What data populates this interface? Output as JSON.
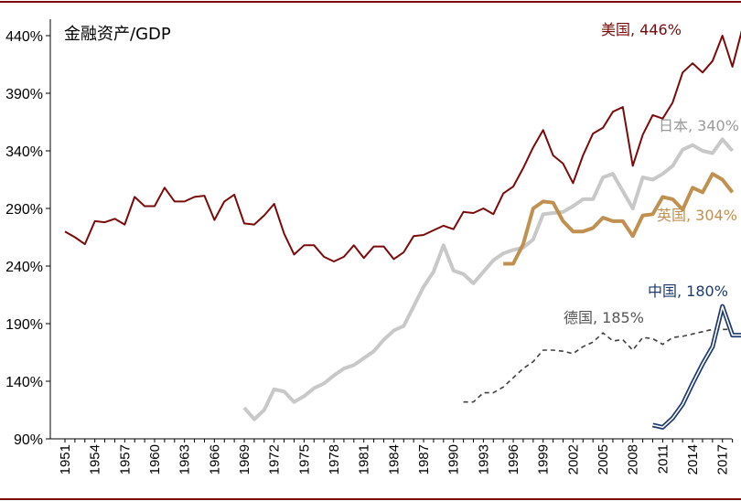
{
  "chart_data": {
    "type": "line",
    "title": "金融资产/GDP",
    "ylabel": "",
    "xlabel": "",
    "ylim": [
      90,
      460
    ],
    "xlim": [
      1951,
      2019
    ],
    "y_ticks": [
      90,
      140,
      190,
      240,
      290,
      340,
      390,
      440
    ],
    "y_tick_labels": [
      "90%",
      "140%",
      "190%",
      "240%",
      "290%",
      "340%",
      "390%",
      "440%"
    ],
    "x_ticks": [
      1951,
      1954,
      1957,
      1960,
      1963,
      1966,
      1969,
      1972,
      1975,
      1978,
      1981,
      1984,
      1987,
      1990,
      1993,
      1996,
      1999,
      2002,
      2005,
      2008,
      2011,
      2014,
      2017
    ],
    "x_tick_labels": [
      "1951",
      "1954",
      "1957",
      "1960",
      "1963",
      "1966",
      "1969",
      "1972",
      "1975",
      "1978",
      "1981",
      "1984",
      "1987",
      "1990",
      "1993",
      "1996",
      "1999",
      "2002",
      "2005",
      "2008",
      "2011",
      "2014",
      "2017"
    ],
    "grid": false,
    "series": [
      {
        "name": "美国",
        "label": "美国, 446%",
        "color": "#7b0a0a",
        "style": "solid",
        "x": [
          1951,
          1952,
          1953,
          1954,
          1955,
          1956,
          1957,
          1958,
          1959,
          1960,
          1961,
          1962,
          1963,
          1964,
          1965,
          1966,
          1967,
          1968,
          1969,
          1970,
          1971,
          1972,
          1973,
          1974,
          1975,
          1976,
          1977,
          1978,
          1979,
          1980,
          1981,
          1982,
          1983,
          1984,
          1985,
          1986,
          1987,
          1988,
          1989,
          1990,
          1991,
          1992,
          1993,
          1994,
          1995,
          1996,
          1997,
          1998,
          1999,
          2000,
          2001,
          2002,
          2003,
          2004,
          2005,
          2006,
          2007,
          2008,
          2009,
          2010,
          2011,
          2012,
          2013,
          2014,
          2015,
          2016,
          2017,
          2018,
          2019
        ],
        "values": [
          270,
          265,
          259,
          279,
          278,
          281,
          276,
          300,
          292,
          292,
          308,
          296,
          296,
          300,
          301,
          280,
          296,
          302,
          277,
          276,
          284,
          294,
          268,
          250,
          258,
          258,
          248,
          244,
          248,
          258,
          247,
          257,
          257,
          246,
          252,
          266,
          267,
          271,
          275,
          272,
          287,
          286,
          290,
          285,
          303,
          309,
          325,
          343,
          358,
          336,
          329,
          312,
          336,
          355,
          360,
          374,
          378,
          327,
          354,
          371,
          368,
          382,
          408,
          416,
          408,
          418,
          440,
          413,
          446
        ]
      },
      {
        "name": "日本",
        "label": "日本, 340%",
        "color": "#c8c8c8",
        "style": "solid",
        "x": [
          1969,
          1970,
          1971,
          1972,
          1973,
          1974,
          1975,
          1976,
          1977,
          1978,
          1979,
          1980,
          1981,
          1982,
          1983,
          1984,
          1985,
          1986,
          1987,
          1988,
          1989,
          1990,
          1991,
          1992,
          1993,
          1994,
          1995,
          1996,
          1997,
          1998,
          1999,
          2000,
          2001,
          2002,
          2003,
          2004,
          2005,
          2006,
          2007,
          2008,
          2009,
          2010,
          2011,
          2012,
          2013,
          2014,
          2015,
          2016,
          2017,
          2018
        ],
        "values": [
          117,
          107,
          115,
          133,
          131,
          122,
          127,
          134,
          138,
          145,
          151,
          154,
          160,
          166,
          176,
          184,
          188,
          205,
          222,
          235,
          258,
          236,
          233,
          225,
          235,
          245,
          251,
          254,
          256,
          263,
          285,
          286,
          287,
          292,
          298,
          298,
          317,
          320,
          305,
          290,
          317,
          315,
          320,
          327,
          341,
          345,
          340,
          338,
          350,
          340
        ]
      },
      {
        "name": "英国",
        "label": "英国, 304%",
        "color": "#c09050",
        "style": "solid",
        "x": [
          1995,
          1996,
          1997,
          1998,
          1999,
          2000,
          2001,
          2002,
          2003,
          2004,
          2005,
          2006,
          2007,
          2008,
          2009,
          2010,
          2011,
          2012,
          2013,
          2014,
          2015,
          2016,
          2017,
          2018
        ],
        "values": [
          242,
          242,
          259,
          290,
          296,
          295,
          279,
          270,
          270,
          273,
          282,
          279,
          279,
          266,
          284,
          285,
          300,
          298,
          289,
          308,
          304,
          320,
          315,
          304
        ]
      },
      {
        "name": "德国",
        "label": "德国, 185%",
        "color": "#404040",
        "style": "dashed",
        "x": [
          1991,
          1992,
          1993,
          1994,
          1995,
          1996,
          1997,
          1998,
          1999,
          2000,
          2001,
          2002,
          2003,
          2004,
          2005,
          2006,
          2007,
          2008,
          2009,
          2010,
          2011,
          2012,
          2013,
          2014,
          2015,
          2016,
          2017,
          2018
        ],
        "values": [
          122,
          122,
          130,
          130,
          135,
          143,
          151,
          157,
          167,
          167,
          166,
          164,
          170,
          174,
          182,
          175,
          176,
          167,
          178,
          177,
          172,
          178,
          179,
          181,
          183,
          185,
          185,
          185
        ]
      },
      {
        "name": "中国",
        "label": "中国, 180%",
        "color": "#1f3a6e",
        "style": "double",
        "x": [
          2010,
          2011,
          2012,
          2013,
          2014,
          2015,
          2016,
          2017,
          2018,
          2019
        ],
        "values": [
          102,
          100,
          108,
          120,
          138,
          155,
          170,
          205,
          180,
          180
        ]
      }
    ]
  }
}
